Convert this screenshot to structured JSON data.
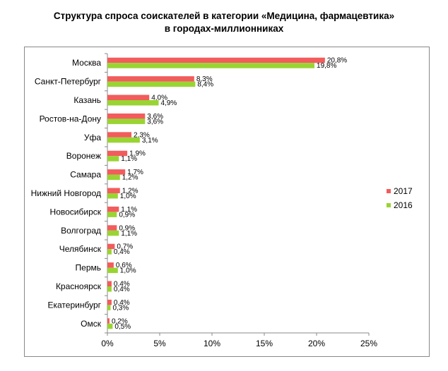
{
  "chart_data": {
    "type": "bar",
    "orientation": "horizontal",
    "title": "Структура спроса соискателей  в категории «Медицина, фармацевтика»",
    "subtitle": "в городах-миллионниках",
    "categories": [
      "Москва",
      "Санкт-Петербург",
      "Казань",
      "Ростов-на-Дону",
      "Уфа",
      "Воронеж",
      "Самара",
      "Нижний Новгород",
      "Новосибирск",
      "Волгоград",
      "Челябинск",
      "Пермь",
      "Красноярск",
      "Екатеринбург",
      "Омск"
    ],
    "series": [
      {
        "name": "2017",
        "color": "#f25c5c",
        "values": [
          20.8,
          8.3,
          4.0,
          3.6,
          2.3,
          1.9,
          1.7,
          1.2,
          1.1,
          0.9,
          0.7,
          0.6,
          0.4,
          0.4,
          0.2
        ],
        "labels": [
          "20,8%",
          "8,3%",
          "4,0%",
          "3,6%",
          "2,3%",
          "1,9%",
          "1,7%",
          "1,2%",
          "1,1%",
          "0,9%",
          "0,7%",
          "0,6%",
          "0,4%",
          "0,4%",
          "0,2%"
        ]
      },
      {
        "name": "2016",
        "color": "#99d433",
        "values": [
          19.8,
          8.4,
          4.9,
          3.6,
          3.1,
          1.1,
          1.2,
          1.0,
          0.9,
          1.1,
          0.4,
          1.0,
          0.4,
          0.3,
          0.5
        ],
        "labels": [
          "19,8%",
          "8,4%",
          "4,9%",
          "3,6%",
          "3,1%",
          "1,1%",
          "1,2%",
          "1,0%",
          "0,9%",
          "1,1%",
          "0,4%",
          "1,0%",
          "0,4%",
          "0,3%",
          "0,5%"
        ]
      }
    ],
    "xlim": [
      0,
      25
    ],
    "xticks": [
      0,
      5,
      10,
      15,
      20,
      25
    ],
    "xtick_labels": [
      "0%",
      "5%",
      "10%",
      "15%",
      "20%",
      "25%"
    ],
    "xlabel": "",
    "ylabel": "",
    "grid": false,
    "legend_position": "right"
  }
}
